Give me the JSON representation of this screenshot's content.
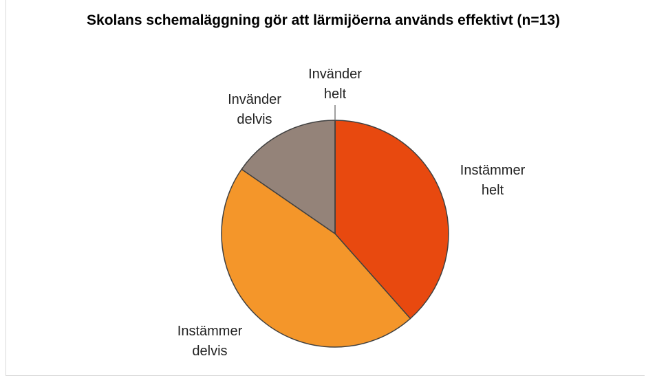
{
  "chart_data": {
    "type": "pie",
    "title": "Skolans schemaläggning gör att lärmijöerna används effektivt (n=13)",
    "categories": [
      "Instämmer helt",
      "Instämmer delvis",
      "Invänder delvis",
      "Invänder helt"
    ],
    "values": [
      5,
      6,
      2,
      0
    ],
    "colors": [
      "#e8490f",
      "#f4962a",
      "#948379",
      "#5a5a5a"
    ]
  }
}
